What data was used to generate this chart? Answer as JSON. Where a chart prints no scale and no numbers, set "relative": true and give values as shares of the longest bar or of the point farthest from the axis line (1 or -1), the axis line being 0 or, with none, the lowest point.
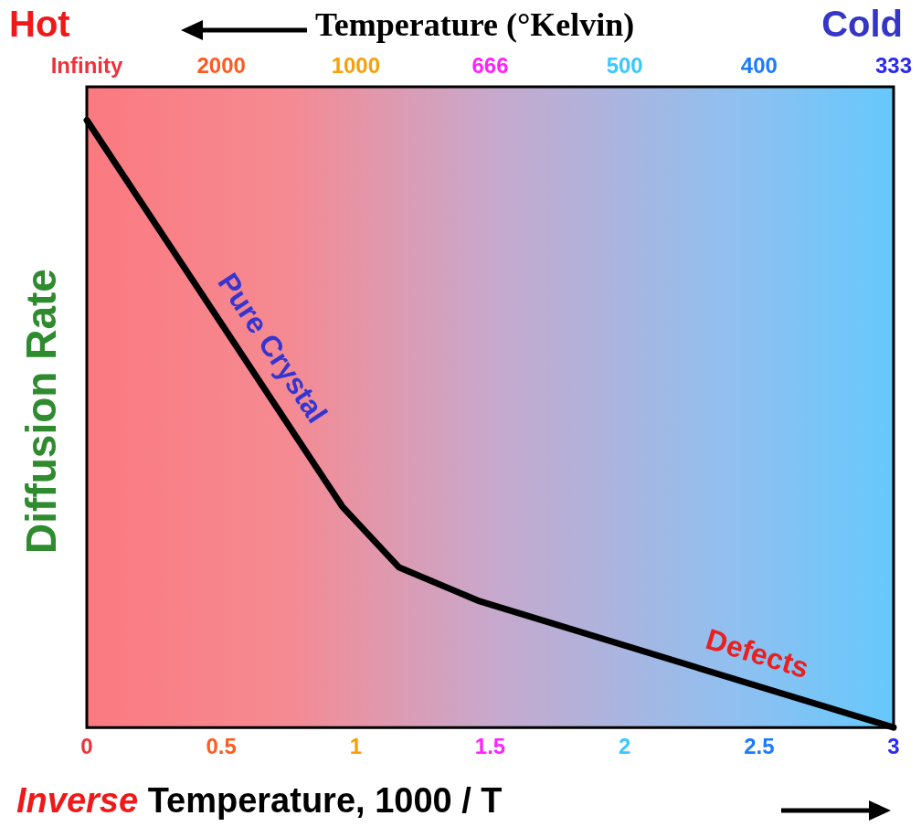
{
  "chart_data": {
    "type": "line",
    "xlabel": "Inverse Temperature, 1000 / T",
    "ylabel": "Diffusion Rate",
    "x2label": "Temperature (°Kelvin)",
    "x": [
      0,
      0.95,
      1.16,
      1.46,
      3
    ],
    "series": [
      {
        "color": "#000000",
        "values": [
          1,
          0.364,
          0.264,
          0.208,
          0
        ]
      }
    ],
    "relative": true,
    "xlim": [
      0,
      3
    ],
    "xticks": [
      0,
      0.5,
      1,
      1.5,
      2,
      2.5,
      3
    ],
    "annotations": [
      "Hot",
      "Cold",
      "Pure Crystal",
      "Defects",
      "Infinity",
      "2000",
      "1000",
      "666",
      "500",
      "400",
      "333"
    ],
    "marker": "none",
    "legend": false,
    "grid": false
  }
}
